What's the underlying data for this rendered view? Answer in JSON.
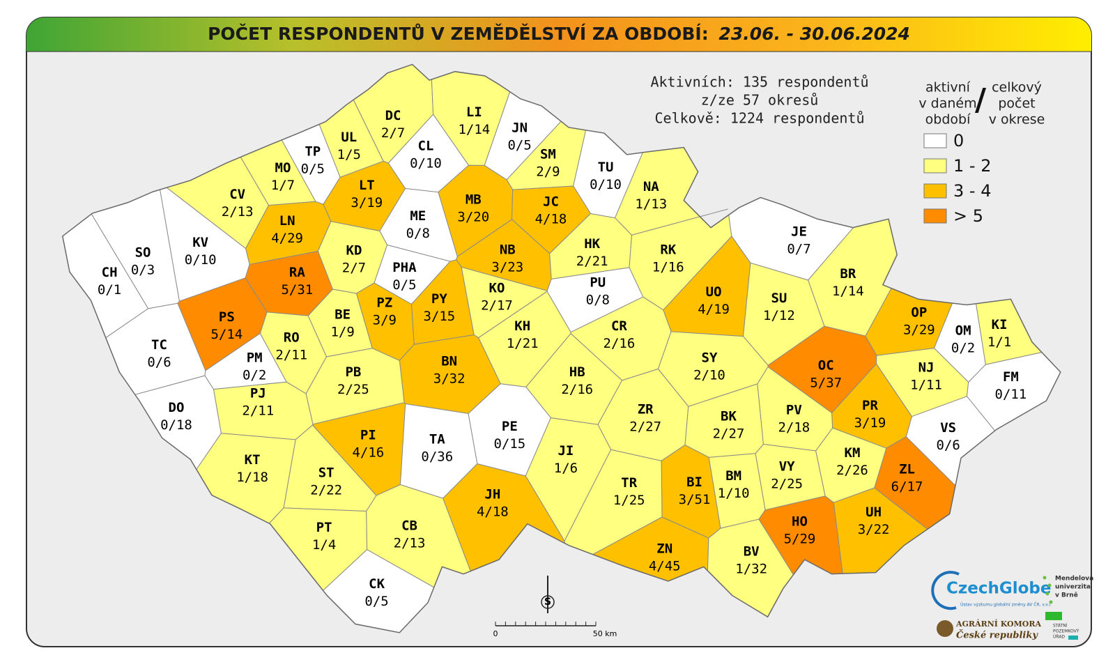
{
  "header": {
    "title": "POČET RESPONDENTŮ V ZEMĚDĚLSTVÍ ZA OBDOBÍ:",
    "period": "23.06. - 30.06.2024"
  },
  "summary": [
    "Aktivních: 135 respondentů",
    "z/ze 57 okresů",
    "Celkově: 1224 respondentů"
  ],
  "legend": {
    "left": [
      "aktivní",
      "v daném",
      "období"
    ],
    "separator": "/",
    "right": [
      "celkový",
      "počet",
      "v okrese"
    ],
    "items": [
      {
        "label": "0",
        "color": "#ffffff"
      },
      {
        "label": "1 - 2",
        "color": "#ffff80"
      },
      {
        "label": "3 - 4",
        "color": "#ffc000"
      },
      {
        "label": "> 5",
        "color": "#ff8c00"
      }
    ]
  },
  "districts": [
    {
      "code": "DC",
      "label": "2/7",
      "class": 1
    },
    {
      "code": "LI",
      "label": "1/14",
      "class": 1
    },
    {
      "code": "JN",
      "label": "0/5",
      "class": 0
    },
    {
      "code": "UL",
      "label": "1/5",
      "class": 1
    },
    {
      "code": "TP",
      "label": "0/5",
      "class": 0
    },
    {
      "code": "CL",
      "label": "0/10",
      "class": 0
    },
    {
      "code": "SM",
      "label": "2/9",
      "class": 1
    },
    {
      "code": "TU",
      "label": "0/10",
      "class": 0
    },
    {
      "code": "MO",
      "label": "1/7",
      "class": 1
    },
    {
      "code": "CV",
      "label": "2/13",
      "class": 1
    },
    {
      "code": "LT",
      "label": "3/19",
      "class": 2
    },
    {
      "code": "MB",
      "label": "3/20",
      "class": 2
    },
    {
      "code": "JC",
      "label": "4/18",
      "class": 2
    },
    {
      "code": "NA",
      "label": "1/13",
      "class": 1
    },
    {
      "code": "ME",
      "label": "0/8",
      "class": 0
    },
    {
      "code": "LN",
      "label": "4/29",
      "class": 2
    },
    {
      "code": "KV",
      "label": "0/10",
      "class": 0
    },
    {
      "code": "SO",
      "label": "0/3",
      "class": 0
    },
    {
      "code": "CH",
      "label": "0/1",
      "class": 0
    },
    {
      "code": "KD",
      "label": "2/7",
      "class": 1
    },
    {
      "code": "NB",
      "label": "3/23",
      "class": 2
    },
    {
      "code": "HK",
      "label": "2/21",
      "class": 1
    },
    {
      "code": "RK",
      "label": "1/16",
      "class": 1
    },
    {
      "code": "JE",
      "label": "0/7",
      "class": 0
    },
    {
      "code": "RA",
      "label": "5/31",
      "class": 3
    },
    {
      "code": "PHA",
      "label": "0/5",
      "class": 0
    },
    {
      "code": "PU",
      "label": "0/8",
      "class": 0
    },
    {
      "code": "BR",
      "label": "1/14",
      "class": 1
    },
    {
      "code": "UO",
      "label": "4/19",
      "class": 2
    },
    {
      "code": "SU",
      "label": "1/12",
      "class": 1
    },
    {
      "code": "OP",
      "label": "3/29",
      "class": 2
    },
    {
      "code": "KI",
      "label": "1/1",
      "class": 1
    },
    {
      "code": "OM",
      "label": "0/2",
      "class": 0
    },
    {
      "code": "PS",
      "label": "5/14",
      "class": 3
    },
    {
      "code": "BE",
      "label": "1/9",
      "class": 1
    },
    {
      "code": "PZ",
      "label": "3/9",
      "class": 2
    },
    {
      "code": "PY",
      "label": "3/15",
      "class": 2
    },
    {
      "code": "KO",
      "label": "2/17",
      "class": 1
    },
    {
      "code": "KH",
      "label": "1/21",
      "class": 1
    },
    {
      "code": "CR",
      "label": "2/16",
      "class": 1
    },
    {
      "code": "TC",
      "label": "0/6",
      "class": 0
    },
    {
      "code": "RO",
      "label": "2/11",
      "class": 1
    },
    {
      "code": "PM",
      "label": "0/2",
      "class": 0
    },
    {
      "code": "BN",
      "label": "3/32",
      "class": 2
    },
    {
      "code": "SY",
      "label": "2/10",
      "class": 1
    },
    {
      "code": "OC",
      "label": "5/37",
      "class": 3
    },
    {
      "code": "NJ",
      "label": "1/11",
      "class": 1
    },
    {
      "code": "FM",
      "label": "0/11",
      "class": 0
    },
    {
      "code": "PB",
      "label": "2/25",
      "class": 1
    },
    {
      "code": "HB",
      "label": "2/16",
      "class": 1
    },
    {
      "code": "PJ",
      "label": "2/11",
      "class": 1
    },
    {
      "code": "DO",
      "label": "0/18",
      "class": 0
    },
    {
      "code": "ZR",
      "label": "2/27",
      "class": 1
    },
    {
      "code": "BK",
      "label": "2/27",
      "class": 1
    },
    {
      "code": "PV",
      "label": "2/18",
      "class": 1
    },
    {
      "code": "PR",
      "label": "3/19",
      "class": 2
    },
    {
      "code": "VS",
      "label": "0/6",
      "class": 0
    },
    {
      "code": "PE",
      "label": "0/15",
      "class": 0
    },
    {
      "code": "TA",
      "label": "0/36",
      "class": 0
    },
    {
      "code": "PI",
      "label": "4/16",
      "class": 2
    },
    {
      "code": "JI",
      "label": "1/6",
      "class": 1
    },
    {
      "code": "KM",
      "label": "2/26",
      "class": 1
    },
    {
      "code": "ZL",
      "label": "6/17",
      "class": 3
    },
    {
      "code": "KT",
      "label": "1/18",
      "class": 1
    },
    {
      "code": "ST",
      "label": "2/22",
      "class": 1
    },
    {
      "code": "BI",
      "label": "3/51",
      "class": 2
    },
    {
      "code": "BM",
      "label": "1/10",
      "class": 1
    },
    {
      "code": "VY",
      "label": "2/25",
      "class": 1
    },
    {
      "code": "TR",
      "label": "1/25",
      "class": 1
    },
    {
      "code": "JH",
      "label": "4/18",
      "class": 2
    },
    {
      "code": "UH",
      "label": "3/22",
      "class": 2
    },
    {
      "code": "HO",
      "label": "5/29",
      "class": 3
    },
    {
      "code": "PT",
      "label": "1/4",
      "class": 1
    },
    {
      "code": "CB",
      "label": "2/13",
      "class": 1
    },
    {
      "code": "ZN",
      "label": "4/45",
      "class": 2
    },
    {
      "code": "BV",
      "label": "1/32",
      "class": 1
    },
    {
      "code": "CK",
      "label": "0/5",
      "class": 0
    }
  ],
  "north_label": "S",
  "scale": {
    "start": "0",
    "end": "50 km"
  },
  "logos": {
    "czechglobe": "CzechGlobe",
    "czechglobe_sub": "Ústav výzkumu globální změny AV ČR, v.v.i.",
    "mendelu": [
      "Mendelova",
      "univerzita",
      "v Brně"
    ],
    "komora": [
      "AGRÁRNÍ KOMORA",
      "České republiky"
    ],
    "spu": [
      "STÁTNÍ",
      "POZEMKOVÝ",
      "ÚŘAD"
    ]
  }
}
